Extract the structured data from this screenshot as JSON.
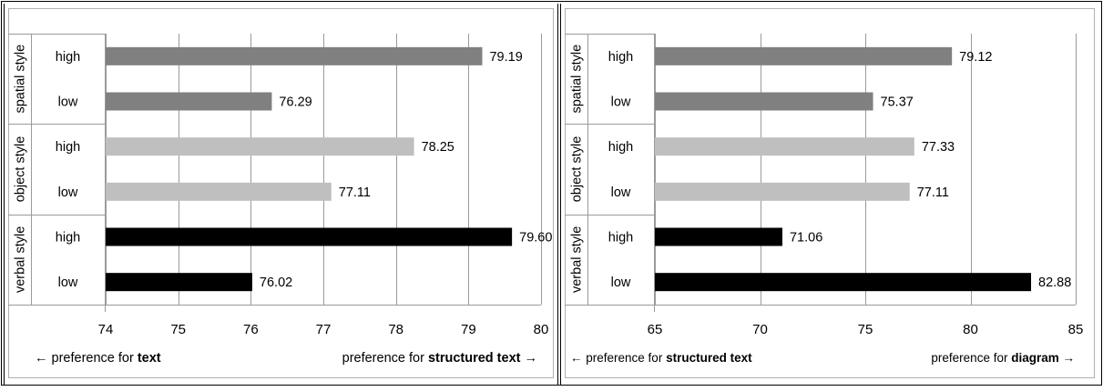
{
  "chart_data": [
    {
      "type": "bar",
      "orientation": "horizontal",
      "title": "",
      "groups": [
        {
          "label": "spatial style",
          "color": "#808080",
          "rows": [
            {
              "category": "high",
              "value": 79.19,
              "value_label": "79.19"
            },
            {
              "category": "low",
              "value": 76.29,
              "value_label": "76.29"
            }
          ]
        },
        {
          "label": "object style",
          "color": "#bfbfbf",
          "rows": [
            {
              "category": "high",
              "value": 78.25,
              "value_label": "78.25"
            },
            {
              "category": "low",
              "value": 77.11,
              "value_label": "77.11"
            }
          ]
        },
        {
          "label": "verbal style",
          "color": "#000000",
          "rows": [
            {
              "category": "high",
              "value": 79.6,
              "value_label": "79.60"
            },
            {
              "category": "low",
              "value": 76.02,
              "value_label": "76.02"
            }
          ]
        }
      ],
      "xlim": [
        74,
        80
      ],
      "xticks": [
        74,
        75,
        76,
        77,
        78,
        79,
        80
      ],
      "grid": true,
      "xlabel_left": {
        "arrow": "←",
        "prefix": "preference for ",
        "bold": "text"
      },
      "xlabel_right": {
        "prefix": "preference for ",
        "bold": "structured text",
        "arrow": "→"
      }
    },
    {
      "type": "bar",
      "orientation": "horizontal",
      "title": "",
      "groups": [
        {
          "label": "spatial style",
          "color": "#808080",
          "rows": [
            {
              "category": "high",
              "value": 79.12,
              "value_label": "79.12"
            },
            {
              "category": "low",
              "value": 75.37,
              "value_label": "75.37"
            }
          ]
        },
        {
          "label": "object style",
          "color": "#bfbfbf",
          "rows": [
            {
              "category": "high",
              "value": 77.33,
              "value_label": "77.33"
            },
            {
              "category": "low",
              "value": 77.11,
              "value_label": "77.11"
            }
          ]
        },
        {
          "label": "verbal style",
          "color": "#000000",
          "rows": [
            {
              "category": "high",
              "value": 71.06,
              "value_label": "71.06"
            },
            {
              "category": "low",
              "value": 82.88,
              "value_label": "82.88"
            }
          ]
        }
      ],
      "xlim": [
        65,
        85
      ],
      "xticks": [
        65,
        70,
        75,
        80,
        85
      ],
      "grid": true,
      "xlabel_left": {
        "arrow": "←",
        "prefix": "preference for ",
        "bold": "structured text"
      },
      "xlabel_right": {
        "prefix": "preference for ",
        "bold": "diagram",
        "arrow": "→"
      }
    }
  ]
}
